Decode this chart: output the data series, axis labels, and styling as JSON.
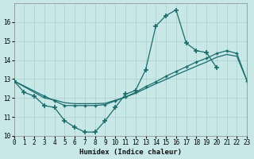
{
  "background_color": "#c8e8e8",
  "grid_color": "#aacece",
  "line_color": "#1a6b6b",
  "xlabel": "Humidex (Indice chaleur)",
  "xlim": [
    0,
    23
  ],
  "ylim": [
    10,
    17
  ],
  "yticks": [
    10,
    11,
    12,
    13,
    14,
    15,
    16
  ],
  "xticks": [
    0,
    1,
    2,
    3,
    4,
    5,
    6,
    7,
    8,
    9,
    10,
    11,
    12,
    13,
    14,
    15,
    16,
    17,
    18,
    19,
    20,
    21,
    22,
    23
  ],
  "line1_x": [
    0,
    1,
    2,
    3,
    4,
    5,
    6,
    7,
    8,
    9,
    10,
    11,
    12,
    13,
    14,
    15,
    16,
    17,
    18,
    19,
    20
  ],
  "line1_y": [
    12.9,
    12.3,
    12.1,
    11.6,
    11.5,
    10.8,
    10.45,
    10.2,
    10.2,
    10.8,
    11.5,
    12.2,
    12.4,
    13.5,
    15.8,
    16.35,
    16.65,
    14.9,
    14.5,
    14.4,
    13.6
  ],
  "line2_x": [
    0,
    3,
    4,
    5,
    6,
    7,
    8,
    9,
    10,
    11,
    12,
    13,
    14,
    15,
    16,
    17,
    18,
    19,
    20,
    21,
    22,
    23
  ],
  "line2_y": [
    12.9,
    12.1,
    11.85,
    11.6,
    11.6,
    11.6,
    11.6,
    11.65,
    11.85,
    12.05,
    12.3,
    12.6,
    12.85,
    13.15,
    13.4,
    13.65,
    13.9,
    14.1,
    14.35,
    14.5,
    14.35,
    12.9
  ],
  "line3_x": [
    0,
    3,
    4,
    5,
    6,
    7,
    8,
    9,
    10,
    11,
    12,
    13,
    14,
    15,
    16,
    17,
    18,
    19,
    20,
    21,
    22,
    23
  ],
  "line3_y": [
    12.9,
    12.0,
    11.9,
    11.75,
    11.7,
    11.7,
    11.7,
    11.72,
    11.88,
    12.05,
    12.25,
    12.5,
    12.75,
    12.98,
    13.22,
    13.45,
    13.68,
    13.9,
    14.15,
    14.3,
    14.2,
    12.9
  ]
}
